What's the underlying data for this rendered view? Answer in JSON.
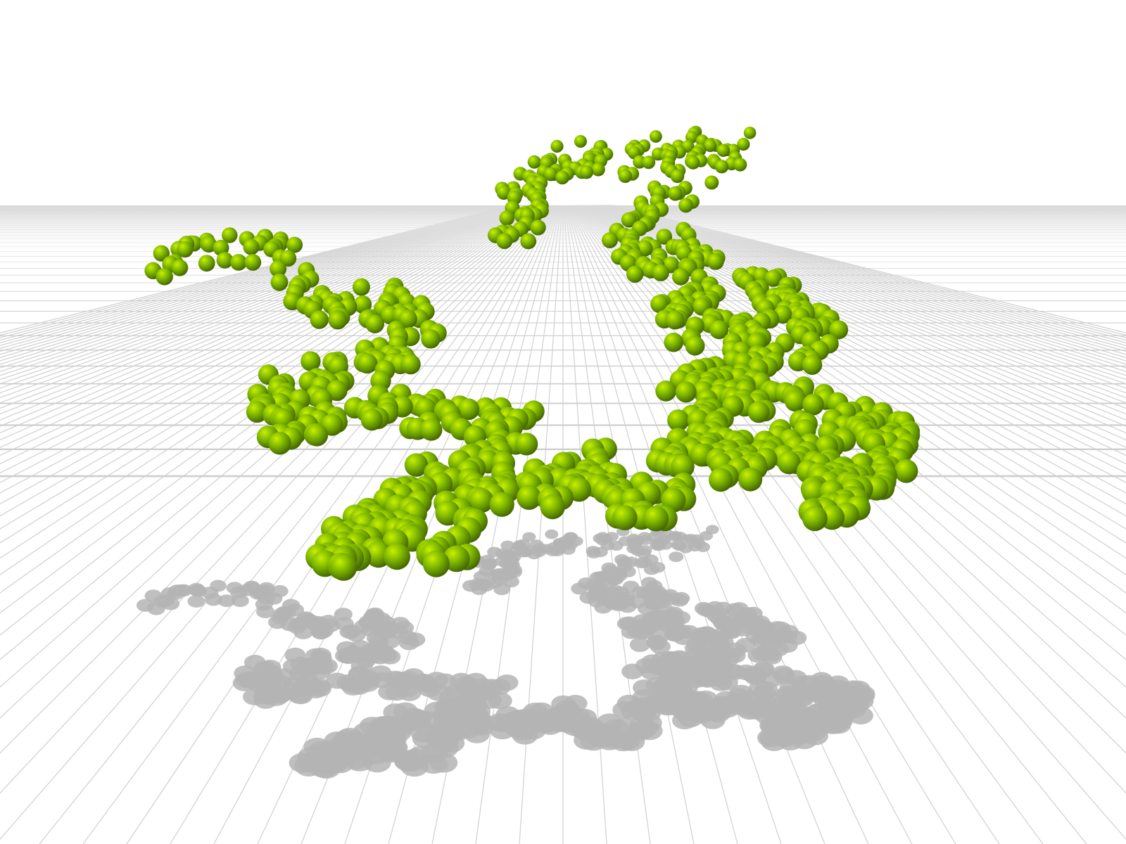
{
  "scene": {
    "colors": {
      "background": "#ffffff",
      "sphere_highlight": "#c8f000",
      "sphere_base": "#7fb800",
      "sphere_shade": "#3f6000",
      "shadow": "#b4b4b4",
      "grid_line": "#cfcfcf"
    }
  }
}
